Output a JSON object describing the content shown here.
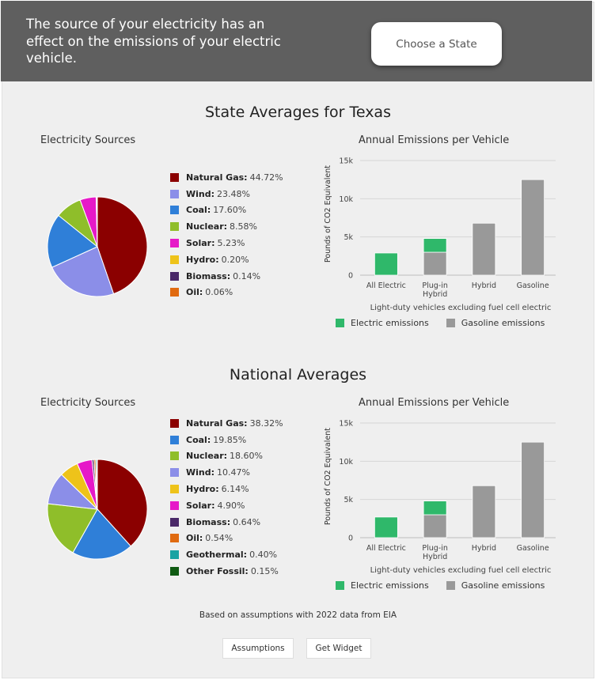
{
  "banner": {
    "message": "The source of your electricity has an effect on the emissions of your electric vehicle.",
    "choose_state_label": "Choose a State"
  },
  "state": {
    "title": "State Averages for Texas",
    "sources_title": "Electricity Sources",
    "emissions_title": "Annual Emissions per Vehicle",
    "sources": [
      {
        "name": "Natural Gas:",
        "value": "44.72%",
        "pct": 44.72,
        "color": "#8b0000"
      },
      {
        "name": "Wind:",
        "value": "23.48%",
        "pct": 23.48,
        "color": "#8b8ee8"
      },
      {
        "name": "Coal:",
        "value": "17.60%",
        "pct": 17.6,
        "color": "#2f7fd8"
      },
      {
        "name": "Nuclear:",
        "value": "8.58%",
        "pct": 8.58,
        "color": "#8fbe2a"
      },
      {
        "name": "Solar:",
        "value": "5.23%",
        "pct": 5.23,
        "color": "#e619c8"
      },
      {
        "name": "Hydro:",
        "value": "0.20%",
        "pct": 0.2,
        "color": "#eec31a"
      },
      {
        "name": "Biomass:",
        "value": "0.14%",
        "pct": 0.14,
        "color": "#4a2868"
      },
      {
        "name": "Oil:",
        "value": "0.06%",
        "pct": 0.06,
        "color": "#e06a10"
      }
    ],
    "chart_data": {
      "type": "bar",
      "categories": [
        "All Electric",
        "Plug-in Hybrid",
        "Hybrid",
        "Gasoline"
      ],
      "series": [
        {
          "name": "Electric emissions",
          "color": "#2fb86a",
          "values": [
            2900,
            1800,
            0,
            0
          ]
        },
        {
          "name": "Gasoline emissions",
          "color": "#999999",
          "values": [
            0,
            3000,
            6800,
            12500
          ]
        }
      ],
      "ylabel": "Pounds of CO2 Equivalent",
      "ylim": [
        0,
        15000
      ],
      "yticks": [
        "0",
        "5k",
        "10k",
        "15k"
      ],
      "subtitle": "Light-duty vehicles excluding fuel cell electric"
    }
  },
  "national": {
    "title": "National Averages",
    "sources_title": "Electricity Sources",
    "emissions_title": "Annual Emissions per Vehicle",
    "sources": [
      {
        "name": "Natural Gas:",
        "value": "38.32%",
        "pct": 38.32,
        "color": "#8b0000"
      },
      {
        "name": "Coal:",
        "value": "19.85%",
        "pct": 19.85,
        "color": "#2f7fd8"
      },
      {
        "name": "Nuclear:",
        "value": "18.60%",
        "pct": 18.6,
        "color": "#8fbe2a"
      },
      {
        "name": "Wind:",
        "value": "10.47%",
        "pct": 10.47,
        "color": "#8b8ee8"
      },
      {
        "name": "Hydro:",
        "value": "6.14%",
        "pct": 6.14,
        "color": "#eec31a"
      },
      {
        "name": "Solar:",
        "value": "4.90%",
        "pct": 4.9,
        "color": "#e619c8"
      },
      {
        "name": "Biomass:",
        "value": "0.64%",
        "pct": 0.64,
        "color": "#4a2868"
      },
      {
        "name": "Oil:",
        "value": "0.54%",
        "pct": 0.54,
        "color": "#e06a10"
      },
      {
        "name": "Geothermal:",
        "value": "0.40%",
        "pct": 0.4,
        "color": "#18a3a3"
      },
      {
        "name": "Other Fossil:",
        "value": "0.15%",
        "pct": 0.15,
        "color": "#0f5a12"
      }
    ],
    "chart_data": {
      "type": "bar",
      "categories": [
        "All Electric",
        "Plug-in Hybrid",
        "Hybrid",
        "Gasoline"
      ],
      "series": [
        {
          "name": "Electric emissions",
          "color": "#2fb86a",
          "values": [
            2700,
            1800,
            0,
            0
          ]
        },
        {
          "name": "Gasoline emissions",
          "color": "#999999",
          "values": [
            0,
            3000,
            6800,
            12500
          ]
        }
      ],
      "ylabel": "Pounds of CO2 Equivalent",
      "ylim": [
        0,
        15000
      ],
      "yticks": [
        "0",
        "5k",
        "10k",
        "15k"
      ],
      "subtitle": "Light-duty vehicles excluding fuel cell electric"
    }
  },
  "footer": {
    "note": "Based on assumptions with 2022 data from EIA",
    "assumptions_label": "Assumptions",
    "widget_label": "Get Widget"
  }
}
